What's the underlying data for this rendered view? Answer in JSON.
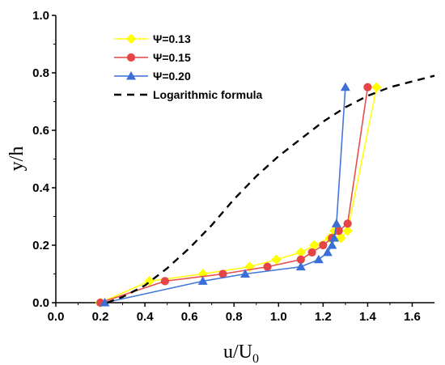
{
  "chart_data": {
    "type": "line",
    "xlabel": "u/U",
    "xlabel_sub": "0",
    "ylabel": "y/h",
    "xlim": [
      0.0,
      1.7
    ],
    "ylim": [
      0.0,
      1.0
    ],
    "xticks": [
      "0.0",
      "0.2",
      "0.4",
      "0.6",
      "0.8",
      "1.0",
      "1.2",
      "1.4",
      "1.6"
    ],
    "yticks": [
      "0.0",
      "0.2",
      "0.4",
      "0.6",
      "0.8",
      "1.0"
    ],
    "legend_position": "top-left",
    "series": [
      {
        "name": "Ψ=0.13",
        "color": "#ffff00",
        "marker": "diamond",
        "x": [
          0.2,
          0.42,
          0.66,
          0.87,
          0.99,
          1.1,
          1.16,
          1.23,
          1.25,
          1.28,
          1.31,
          1.44
        ],
        "y": [
          0.0,
          0.075,
          0.1,
          0.125,
          0.15,
          0.175,
          0.2,
          0.225,
          0.25,
          0.225,
          0.25,
          0.75
        ]
      },
      {
        "name": "Ψ=0.15",
        "color": "#e64545",
        "marker": "circle",
        "x": [
          0.2,
          0.49,
          0.75,
          0.95,
          1.1,
          1.15,
          1.2,
          1.24,
          1.27,
          1.31,
          1.4
        ],
        "y": [
          0.0,
          0.075,
          0.1,
          0.125,
          0.15,
          0.175,
          0.2,
          0.225,
          0.25,
          0.275,
          0.75
        ]
      },
      {
        "name": "Ψ=0.20",
        "color": "#3a6fd8",
        "marker": "triangle",
        "x": [
          0.22,
          0.66,
          0.85,
          1.1,
          1.18,
          1.22,
          1.24,
          1.25,
          1.26,
          1.3
        ],
        "y": [
          0.0,
          0.075,
          0.1,
          0.125,
          0.15,
          0.175,
          0.2,
          0.225,
          0.275,
          0.75
        ]
      },
      {
        "name": "Logarithmic formula",
        "color": "#000000",
        "style": "dashed",
        "x": [
          0.23,
          0.3,
          0.4,
          0.5,
          0.6,
          0.7,
          0.8,
          0.9,
          1.0,
          1.1,
          1.2,
          1.3,
          1.4,
          1.5,
          1.6,
          1.7
        ],
        "y": [
          0.0,
          0.02,
          0.06,
          0.12,
          0.19,
          0.27,
          0.36,
          0.44,
          0.51,
          0.57,
          0.63,
          0.68,
          0.72,
          0.75,
          0.77,
          0.79
        ]
      }
    ]
  }
}
